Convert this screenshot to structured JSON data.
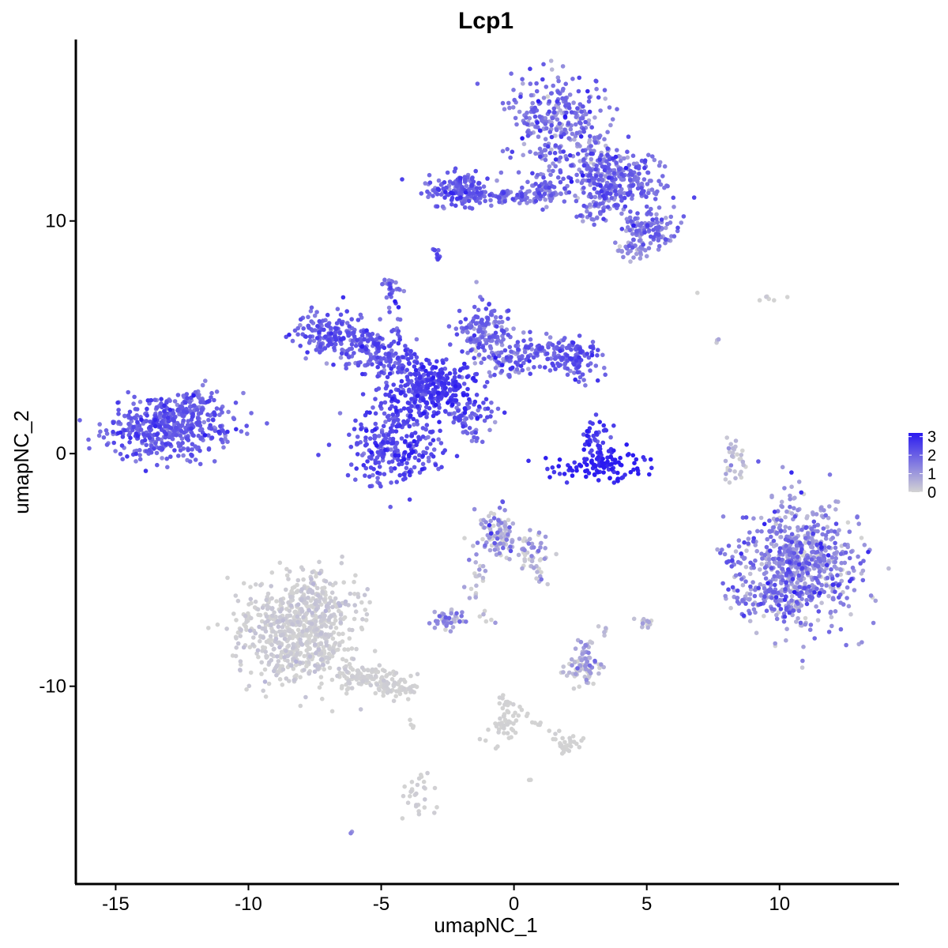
{
  "chart_data": {
    "type": "scatter",
    "title": "Lcp1",
    "xlabel": "umapNC_1",
    "ylabel": "umapNC_2",
    "xlim": [
      -16.5,
      14.5
    ],
    "ylim": [
      -18.5,
      17.8
    ],
    "xticks": [
      -15,
      -10,
      -5,
      0,
      5,
      10
    ],
    "yticks": [
      -10,
      0,
      10
    ],
    "xtick_labels": [
      "-15",
      "-10",
      "-5",
      "0",
      "5",
      "10"
    ],
    "ytick_labels": [
      "-10",
      "0",
      "10"
    ],
    "grid": false,
    "legend": {
      "placement": "right",
      "type": "colorbar",
      "min": 0,
      "max": 3.2,
      "ticks": [
        0,
        1,
        2,
        3
      ],
      "tick_labels": [
        "0",
        "1",
        "2",
        "3"
      ],
      "color_low": "#d3d3d3",
      "color_high": "#2b1bf0"
    },
    "clusters": [
      {
        "cx": -13.0,
        "cy": 1.1,
        "sx": 1.2,
        "sy": 0.65,
        "n": 450,
        "expr_mean": 2.0,
        "expr_sd": 0.4
      },
      {
        "cx": -12.0,
        "cy": 2.2,
        "sx": 0.4,
        "sy": 0.35,
        "n": 40,
        "expr_mean": 1.9,
        "expr_sd": 0.4
      },
      {
        "cx": -4.5,
        "cy": 0.3,
        "sx": 1.0,
        "sy": 0.8,
        "n": 260,
        "expr_mean": 2.3,
        "expr_sd": 0.4
      },
      {
        "cx": -3.5,
        "cy": 2.4,
        "sx": 0.8,
        "sy": 0.6,
        "n": 180,
        "expr_mean": 2.4,
        "expr_sd": 0.4
      },
      {
        "cx": -2.6,
        "cy": 3.0,
        "sx": 0.6,
        "sy": 0.5,
        "n": 140,
        "expr_mean": 2.5,
        "expr_sd": 0.3
      },
      {
        "cx": -7.0,
        "cy": 5.2,
        "sx": 0.6,
        "sy": 0.5,
        "n": 120,
        "expr_mean": 2.1,
        "expr_sd": 0.4
      },
      {
        "cx": -5.6,
        "cy": 4.6,
        "sx": 0.7,
        "sy": 0.5,
        "n": 110,
        "expr_mean": 2.0,
        "expr_sd": 0.4
      },
      {
        "cx": -4.3,
        "cy": 3.8,
        "sx": 0.5,
        "sy": 0.4,
        "n": 90,
        "expr_mean": 2.2,
        "expr_sd": 0.4
      },
      {
        "cx": -1.2,
        "cy": 5.4,
        "sx": 0.5,
        "sy": 0.6,
        "n": 120,
        "expr_mean": 1.8,
        "expr_sd": 0.5
      },
      {
        "cx": -0.5,
        "cy": 4.2,
        "sx": 0.6,
        "sy": 0.5,
        "n": 80,
        "expr_mean": 1.6,
        "expr_sd": 0.6
      },
      {
        "cx": 1.2,
        "cy": 4.3,
        "sx": 0.9,
        "sy": 0.4,
        "n": 110,
        "expr_mean": 2.0,
        "expr_sd": 0.4
      },
      {
        "cx": 2.3,
        "cy": 3.9,
        "sx": 0.4,
        "sy": 0.4,
        "n": 70,
        "expr_mean": 2.1,
        "expr_sd": 0.4
      },
      {
        "cx": -1.5,
        "cy": 1.8,
        "sx": 0.5,
        "sy": 0.3,
        "n": 40,
        "expr_mean": 1.9,
        "expr_sd": 0.5
      },
      {
        "cx": -4.6,
        "cy": 7.3,
        "sx": 0.2,
        "sy": 0.2,
        "n": 20,
        "expr_mean": 1.8,
        "expr_sd": 0.4
      },
      {
        "cx": -2.9,
        "cy": 8.6,
        "sx": 0.15,
        "sy": 0.2,
        "n": 10,
        "expr_mean": 2.2,
        "expr_sd": 0.4
      },
      {
        "cx": 3.3,
        "cy": -0.5,
        "sx": 0.8,
        "sy": 0.35,
        "n": 110,
        "expr_mean": 3.0,
        "expr_sd": 0.3
      },
      {
        "cx": 3.1,
        "cy": 0.7,
        "sx": 0.25,
        "sy": 0.4,
        "n": 40,
        "expr_mean": 2.8,
        "expr_sd": 0.3
      },
      {
        "cx": -2.2,
        "cy": 11.3,
        "sx": 0.6,
        "sy": 0.4,
        "n": 120,
        "expr_mean": 2.0,
        "expr_sd": 0.4
      },
      {
        "cx": -0.2,
        "cy": 11.1,
        "sx": 0.8,
        "sy": 0.2,
        "n": 50,
        "expr_mean": 1.9,
        "expr_sd": 0.4
      },
      {
        "cx": 1.6,
        "cy": 14.2,
        "sx": 0.9,
        "sy": 1.1,
        "n": 300,
        "expr_mean": 1.6,
        "expr_sd": 0.6
      },
      {
        "cx": 1.3,
        "cy": 11.3,
        "sx": 0.5,
        "sy": 0.4,
        "n": 60,
        "expr_mean": 1.7,
        "expr_sd": 0.5
      },
      {
        "cx": 4.0,
        "cy": 11.6,
        "sx": 0.9,
        "sy": 0.6,
        "n": 220,
        "expr_mean": 1.8,
        "expr_sd": 0.5
      },
      {
        "cx": 3.2,
        "cy": 12.6,
        "sx": 0.5,
        "sy": 0.6,
        "n": 80,
        "expr_mean": 1.5,
        "expr_sd": 0.6
      },
      {
        "cx": 5.3,
        "cy": 9.7,
        "sx": 0.5,
        "sy": 0.35,
        "n": 90,
        "expr_mean": 1.6,
        "expr_sd": 0.5
      },
      {
        "cx": 4.6,
        "cy": 8.9,
        "sx": 0.3,
        "sy": 0.25,
        "n": 40,
        "expr_mean": 1.2,
        "expr_sd": 0.5
      },
      {
        "cx": 3.0,
        "cy": 10.3,
        "sx": 0.4,
        "sy": 0.3,
        "n": 30,
        "expr_mean": 1.6,
        "expr_sd": 0.5
      },
      {
        "cx": 10.8,
        "cy": -4.6,
        "sx": 1.1,
        "sy": 1.3,
        "n": 700,
        "expr_mean": 1.2,
        "expr_sd": 0.7
      },
      {
        "cx": 9.5,
        "cy": -6.3,
        "sx": 0.7,
        "sy": 0.4,
        "n": 70,
        "expr_mean": 1.4,
        "expr_sd": 0.6
      },
      {
        "cx": 8.2,
        "cy": -4.5,
        "sx": 0.25,
        "sy": 0.3,
        "n": 15,
        "expr_mean": 1.6,
        "expr_sd": 0.5
      },
      {
        "cx": -8.2,
        "cy": -7.7,
        "sx": 1.1,
        "sy": 1.1,
        "n": 650,
        "expr_mean": 0.06,
        "expr_sd": 0.15
      },
      {
        "cx": -7.5,
        "cy": -6.0,
        "sx": 0.6,
        "sy": 0.5,
        "n": 80,
        "expr_mean": 0.08,
        "expr_sd": 0.2
      },
      {
        "cx": -5.6,
        "cy": -9.6,
        "sx": 0.7,
        "sy": 0.3,
        "n": 80,
        "expr_mean": 0.02,
        "expr_sd": 0.08
      },
      {
        "cx": -4.4,
        "cy": -10.1,
        "sx": 0.4,
        "sy": 0.2,
        "n": 40,
        "expr_mean": 0.02,
        "expr_sd": 0.05
      },
      {
        "cx": -0.6,
        "cy": -3.4,
        "sx": 0.4,
        "sy": 0.5,
        "n": 100,
        "expr_mean": 0.7,
        "expr_sd": 0.7
      },
      {
        "cx": 0.6,
        "cy": -4.2,
        "sx": 0.4,
        "sy": 0.4,
        "n": 40,
        "expr_mean": 0.5,
        "expr_sd": 0.6
      },
      {
        "cx": -1.4,
        "cy": -5.3,
        "sx": 0.2,
        "sy": 0.6,
        "n": 20,
        "expr_mean": 0.6,
        "expr_sd": 0.6
      },
      {
        "cx": -2.5,
        "cy": -7.1,
        "sx": 0.3,
        "sy": 0.25,
        "n": 40,
        "expr_mean": 0.9,
        "expr_sd": 0.6
      },
      {
        "cx": 2.5,
        "cy": -9.3,
        "sx": 0.4,
        "sy": 0.3,
        "n": 60,
        "expr_mean": 0.5,
        "expr_sd": 0.6
      },
      {
        "cx": 2.7,
        "cy": -8.5,
        "sx": 0.25,
        "sy": 0.25,
        "n": 20,
        "expr_mean": 0.8,
        "expr_sd": 0.6
      },
      {
        "cx": 5.0,
        "cy": -7.3,
        "sx": 0.15,
        "sy": 0.15,
        "n": 15,
        "expr_mean": 0.4,
        "expr_sd": 0.4
      },
      {
        "cx": 3.4,
        "cy": -7.6,
        "sx": 0.1,
        "sy": 0.1,
        "n": 6,
        "expr_mean": 0.3,
        "expr_sd": 0.3
      },
      {
        "cx": -0.4,
        "cy": -11.5,
        "sx": 0.3,
        "sy": 0.6,
        "n": 40,
        "expr_mean": 0.0,
        "expr_sd": 0.03
      },
      {
        "cx": 2.1,
        "cy": -12.5,
        "sx": 0.3,
        "sy": 0.2,
        "n": 20,
        "expr_mean": 0.0,
        "expr_sd": 0.03
      },
      {
        "cx": -3.6,
        "cy": -14.5,
        "sx": 0.3,
        "sy": 0.6,
        "n": 30,
        "expr_mean": 0.05,
        "expr_sd": 0.1
      },
      {
        "cx": 8.4,
        "cy": -0.4,
        "sx": 0.2,
        "sy": 0.5,
        "n": 20,
        "expr_mean": 0.3,
        "expr_sd": 0.4
      },
      {
        "cx": 7.7,
        "cy": 4.8,
        "sx": 0.06,
        "sy": 0.1,
        "n": 3,
        "expr_mean": 0.3,
        "expr_sd": 0.3
      },
      {
        "cx": 9.6,
        "cy": 6.7,
        "sx": 0.3,
        "sy": 0.15,
        "n": 6,
        "expr_mean": 0.05,
        "expr_sd": 0.1
      },
      {
        "cx": 7.0,
        "cy": 6.9,
        "sx": 0.05,
        "sy": 0.05,
        "n": 1,
        "expr_mean": 0.0,
        "expr_sd": 0.0
      },
      {
        "cx": -6.1,
        "cy": -16.3,
        "sx": 0.05,
        "sy": 0.05,
        "n": 2,
        "expr_mean": 1.5,
        "expr_sd": 0.2
      },
      {
        "cx": 0.6,
        "cy": -14.0,
        "sx": 0.05,
        "sy": 0.05,
        "n": 2,
        "expr_mean": 0.0,
        "expr_sd": 0.0
      },
      {
        "cx": -3.9,
        "cy": -11.7,
        "sx": 0.1,
        "sy": 0.15,
        "n": 4,
        "expr_mean": 0.0,
        "expr_sd": 0.0
      }
    ],
    "trails": [
      {
        "from": [
          -2.3,
          1.7
        ],
        "to": [
          -1.3,
          0.6
        ],
        "n": 25,
        "jitter": 0.12,
        "expr_mean": 1.9,
        "expr_sd": 0.4
      },
      {
        "from": [
          -4.7,
          7.2
        ],
        "to": [
          -4.1,
          4.0
        ],
        "n": 18,
        "jitter": 0.12,
        "expr_mean": 2.0,
        "expr_sd": 0.4
      },
      {
        "from": [
          -7.2,
          5.5
        ],
        "to": [
          -5.0,
          4.4
        ],
        "n": 30,
        "jitter": 0.2,
        "expr_mean": 2.1,
        "expr_sd": 0.4
      },
      {
        "from": [
          -3.0,
          11.2
        ],
        "to": [
          0.5,
          11.0
        ],
        "n": 40,
        "jitter": 0.15,
        "expr_mean": 1.9,
        "expr_sd": 0.4
      },
      {
        "from": [
          2.8,
          12.0
        ],
        "to": [
          4.8,
          9.2
        ],
        "n": 30,
        "jitter": 0.2,
        "expr_mean": 1.6,
        "expr_sd": 0.5
      },
      {
        "from": [
          -6.5,
          -9.3
        ],
        "to": [
          -4.0,
          -10.3
        ],
        "n": 40,
        "jitter": 0.15,
        "expr_mean": 0.02,
        "expr_sd": 0.06
      },
      {
        "from": [
          -0.6,
          -10.5
        ],
        "to": [
          2.3,
          -12.6
        ],
        "n": 30,
        "jitter": 0.15,
        "expr_mean": 0.0,
        "expr_sd": 0.03
      },
      {
        "from": [
          0.8,
          -4.8
        ],
        "to": [
          1.1,
          -5.6
        ],
        "n": 10,
        "jitter": 0.1,
        "expr_mean": 0.6,
        "expr_sd": 0.5
      },
      {
        "from": [
          -1.4,
          -7.0
        ],
        "to": [
          -0.6,
          -7.2
        ],
        "n": 6,
        "jitter": 0.1,
        "expr_mean": 0.5,
        "expr_sd": 0.5
      },
      {
        "from": [
          8.0,
          -1.0
        ],
        "to": [
          8.4,
          0.8
        ],
        "n": 12,
        "jitter": 0.08,
        "expr_mean": 0.5,
        "expr_sd": 0.5
      }
    ]
  }
}
